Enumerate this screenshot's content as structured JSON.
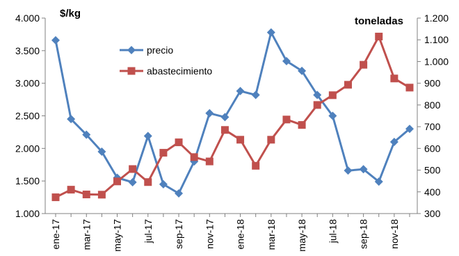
{
  "chart_data": {
    "type": "line",
    "title": "",
    "left_axis_unit": "$/kg",
    "right_axis_unit": "toneladas",
    "left_axis": {
      "min": 1000,
      "max": 4000,
      "step": 500,
      "tick_labels": [
        "1.000",
        "1.500",
        "2.000",
        "2.500",
        "3.000",
        "3.500",
        "4.000"
      ]
    },
    "right_axis": {
      "min": 300,
      "max": 1200,
      "step": 100,
      "tick_labels": [
        "300",
        "400",
        "500",
        "600",
        "700",
        "800",
        "900",
        "1.000",
        "1.100",
        "1.200"
      ]
    },
    "x_tick_labels": [
      "ene-17",
      "mar-17",
      "may-17",
      "jul-17",
      "sep-17",
      "nov-17",
      "ene-18",
      "mar-18",
      "may-18",
      "jul-18",
      "sep-18",
      "nov-18"
    ],
    "categories": [
      "ene-17",
      "feb-17",
      "mar-17",
      "abr-17",
      "may-17",
      "jun-17",
      "jul-17",
      "ago-17",
      "sep-17",
      "oct-17",
      "nov-17",
      "dic-17",
      "ene-18",
      "feb-18",
      "mar-18",
      "abr-18",
      "may-18",
      "jun-18",
      "jul-18",
      "ago-18",
      "sep-18",
      "oct-18",
      "nov-18",
      "dic-18"
    ],
    "grid": false,
    "legend_position": "top-left",
    "series": [
      {
        "name": "precio",
        "axis": "left",
        "color": "#4F81BD",
        "marker": "diamond",
        "values": [
          3660,
          2450,
          2210,
          1950,
          1550,
          1480,
          2190,
          1450,
          1310,
          1800,
          2540,
          2480,
          2880,
          2820,
          3780,
          3340,
          3190,
          2820,
          2500,
          1660,
          1680,
          1490,
          2100,
          2300
        ]
      },
      {
        "name": "abastecimiento",
        "axis": "right",
        "color": "#C0504D",
        "marker": "square",
        "values": [
          375,
          410,
          388,
          387,
          448,
          505,
          445,
          580,
          628,
          560,
          540,
          685,
          640,
          520,
          640,
          733,
          708,
          800,
          845,
          893,
          985,
          1115,
          922,
          880
        ]
      }
    ]
  }
}
